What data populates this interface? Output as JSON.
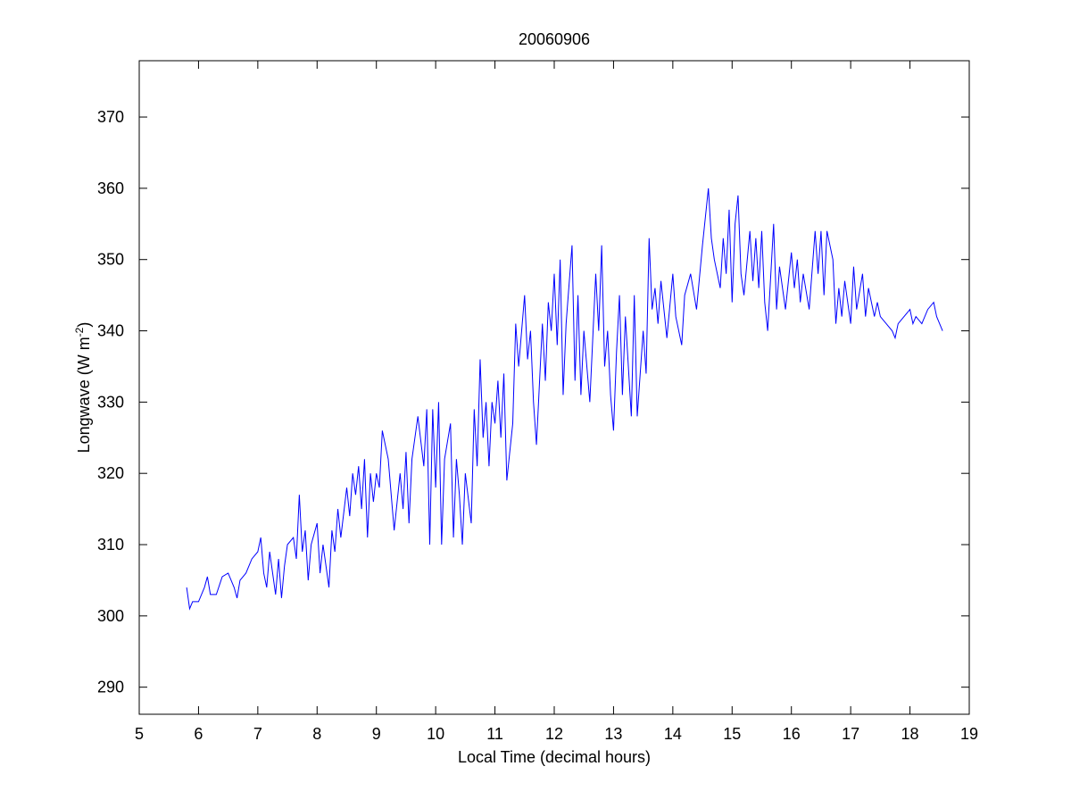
{
  "chart_data": {
    "type": "line",
    "title": "20060906",
    "x_label": "Local Time (decimal hours)",
    "y_label": "Longwave (W m",
    "y_label_sup": "-2",
    "y_label_end": ")",
    "xlim": [
      5,
      19
    ],
    "xticks": [
      5,
      6,
      7,
      8,
      9,
      10,
      11,
      12,
      13,
      14,
      15,
      16,
      17,
      18,
      19
    ],
    "ylim": [
      286.2,
      377.9
    ],
    "yticks": [
      290,
      300,
      310,
      320,
      330,
      340,
      350,
      360,
      370
    ],
    "color": "#0000ff",
    "x": [
      5.8,
      5.85,
      5.9,
      6.0,
      6.1,
      6.15,
      6.2,
      6.3,
      6.4,
      6.5,
      6.6,
      6.65,
      6.7,
      6.8,
      6.9,
      7.0,
      7.05,
      7.1,
      7.15,
      7.2,
      7.3,
      7.35,
      7.4,
      7.45,
      7.5,
      7.6,
      7.65,
      7.7,
      7.75,
      7.8,
      7.85,
      7.9,
      8.0,
      8.05,
      8.1,
      8.15,
      8.2,
      8.25,
      8.3,
      8.35,
      8.4,
      8.5,
      8.55,
      8.6,
      8.65,
      8.7,
      8.75,
      8.8,
      8.85,
      8.9,
      8.95,
      9.0,
      9.05,
      9.1,
      9.2,
      9.3,
      9.4,
      9.45,
      9.5,
      9.55,
      9.6,
      9.7,
      9.8,
      9.85,
      9.9,
      9.95,
      10.0,
      10.05,
      10.1,
      10.15,
      10.25,
      10.3,
      10.35,
      10.4,
      10.45,
      10.5,
      10.6,
      10.65,
      10.7,
      10.75,
      10.8,
      10.85,
      10.9,
      10.95,
      11.0,
      11.05,
      11.1,
      11.15,
      11.2,
      11.3,
      11.35,
      11.4,
      11.5,
      11.55,
      11.6,
      11.65,
      11.7,
      11.8,
      11.85,
      11.9,
      11.95,
      12.0,
      12.05,
      12.1,
      12.15,
      12.2,
      12.3,
      12.35,
      12.4,
      12.45,
      12.5,
      12.6,
      12.7,
      12.75,
      12.8,
      12.85,
      12.9,
      12.95,
      13.0,
      13.05,
      13.1,
      13.15,
      13.2,
      13.3,
      13.35,
      13.4,
      13.5,
      13.55,
      13.6,
      13.65,
      13.7,
      13.75,
      13.8,
      13.9,
      14.0,
      14.05,
      14.15,
      14.2,
      14.3,
      14.4,
      14.5,
      14.6,
      14.65,
      14.7,
      14.8,
      14.85,
      14.9,
      14.95,
      15.0,
      15.05,
      15.1,
      15.15,
      15.2,
      15.3,
      15.35,
      15.4,
      15.45,
      15.5,
      15.55,
      15.6,
      15.7,
      15.75,
      15.8,
      15.9,
      16.0,
      16.05,
      16.1,
      16.15,
      16.2,
      16.3,
      16.4,
      16.45,
      16.5,
      16.55,
      16.6,
      16.7,
      16.75,
      16.8,
      16.85,
      16.9,
      17.0,
      17.05,
      17.1,
      17.2,
      17.25,
      17.3,
      17.4,
      17.45,
      17.5,
      17.6,
      17.7,
      17.75,
      17.8,
      17.9,
      18.0,
      18.05,
      18.1,
      18.2,
      18.3,
      18.4,
      18.45,
      18.5,
      18.55
    ],
    "values": [
      304,
      301,
      302,
      302,
      304,
      305.5,
      303,
      303,
      305.5,
      306,
      304,
      302.5,
      305,
      306,
      308,
      309,
      311,
      306,
      304,
      309,
      303,
      308,
      302.5,
      307,
      310,
      311,
      308,
      317,
      309,
      312,
      305,
      310,
      313,
      306,
      310,
      307,
      304,
      312,
      309,
      315,
      311,
      318,
      314,
      320,
      317,
      321,
      315,
      322,
      311,
      320,
      316,
      320,
      318,
      326,
      322,
      312,
      320,
      315,
      323,
      313,
      322,
      328,
      321,
      329,
      310,
      329,
      318,
      330,
      310,
      322,
      327,
      311,
      322,
      317,
      310,
      320,
      313,
      329,
      321,
      336,
      325,
      330,
      321,
      330,
      327,
      333,
      325,
      334,
      319,
      327,
      341,
      335,
      345,
      336,
      340,
      330,
      324,
      341,
      333,
      344,
      340,
      348,
      338,
      350,
      331,
      341,
      352,
      333,
      345,
      331,
      340,
      330,
      348,
      340,
      352,
      335,
      340,
      331,
      326,
      337,
      345,
      331,
      342,
      328,
      345,
      328,
      340,
      334,
      353,
      343,
      346,
      341,
      347,
      339,
      348,
      342,
      338,
      345,
      348,
      343,
      352,
      360,
      353,
      350,
      346,
      353,
      348,
      357,
      344,
      355,
      359,
      348,
      345,
      354,
      347,
      353,
      346,
      354,
      344,
      340,
      355,
      343,
      349,
      343,
      351,
      346,
      350,
      344,
      348,
      343,
      354,
      348,
      354,
      345,
      354,
      350,
      341,
      346,
      342,
      347,
      341,
      349,
      343,
      348,
      342,
      346,
      342,
      344,
      342,
      341,
      340,
      339,
      341,
      342,
      343,
      341,
      342,
      341,
      343,
      344,
      342,
      341,
      340
    ]
  }
}
